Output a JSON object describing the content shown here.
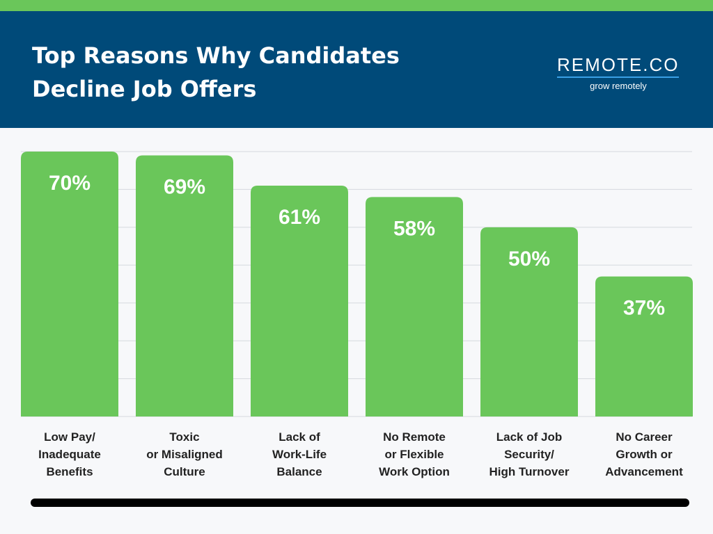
{
  "header": {
    "title_line1": "Top Reasons Why Candidates",
    "title_line2": "Decline Job Offers"
  },
  "logo": {
    "name": "REMOTE.CO",
    "tagline": "grow remotely"
  },
  "colors": {
    "bar": "#6ac65a",
    "header_bg": "#004a79",
    "accent_strip": "#6ac65a",
    "gridline": "#d6d9de"
  },
  "chart_data": {
    "type": "bar",
    "title": "Top Reasons Why Candidates Decline Job Offers",
    "categories": [
      [
        "Low Pay/",
        "Inadequate",
        "Benefits"
      ],
      [
        "Toxic",
        "or Misaligned",
        "Culture"
      ],
      [
        "Lack of",
        "Work-Life",
        "Balance"
      ],
      [
        "No Remote",
        "or Flexible",
        "Work Option"
      ],
      [
        "Lack of Job",
        "Security/",
        "High Turnover"
      ],
      [
        "No Career",
        "Growth or",
        "Advancement"
      ]
    ],
    "values": [
      70,
      69,
      61,
      58,
      50,
      37
    ],
    "value_labels": [
      "70%",
      "69%",
      "61%",
      "58%",
      "50%",
      "37%"
    ],
    "ylim": [
      0,
      70
    ],
    "grid_values": [
      0,
      10,
      20,
      30,
      40,
      50,
      60,
      70
    ],
    "xlabel": "",
    "ylabel": ""
  }
}
